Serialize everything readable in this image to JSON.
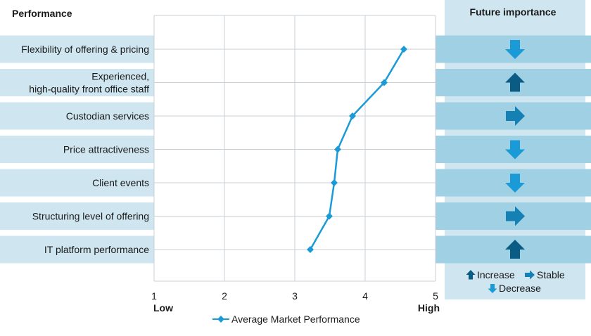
{
  "chart_data": {
    "type": "line",
    "title": "Performance",
    "right_title": "Future importance",
    "categories": [
      "Flexibility of offering & pricing",
      "Experienced,\nhigh-quality front office staff",
      "Custodian services",
      "Price attractiveness",
      "Client events",
      "Structuring level of offering",
      "IT platform performance"
    ],
    "series": [
      {
        "name": "Average Market Performance",
        "values": [
          4.55,
          4.27,
          3.82,
          3.61,
          3.56,
          3.49,
          3.22
        ],
        "color": "#1a9bd7"
      }
    ],
    "xlim": [
      1,
      5
    ],
    "x_ticks": [
      "1",
      "2",
      "3",
      "4",
      "5"
    ],
    "x_low_label": "Low",
    "x_high_label": "High",
    "grid": true,
    "future_importance": [
      "decrease",
      "increase",
      "stable",
      "decrease",
      "decrease",
      "stable",
      "increase"
    ],
    "importance_legend": {
      "increase": "Increase",
      "stable": "Stable",
      "decrease": "Decrease"
    },
    "colors": {
      "increase": "#0a5c84",
      "stable": "#1480b4",
      "decrease": "#1a9bd7",
      "band": "#cfe5f0",
      "band_dark": "#9fd0e3"
    }
  }
}
